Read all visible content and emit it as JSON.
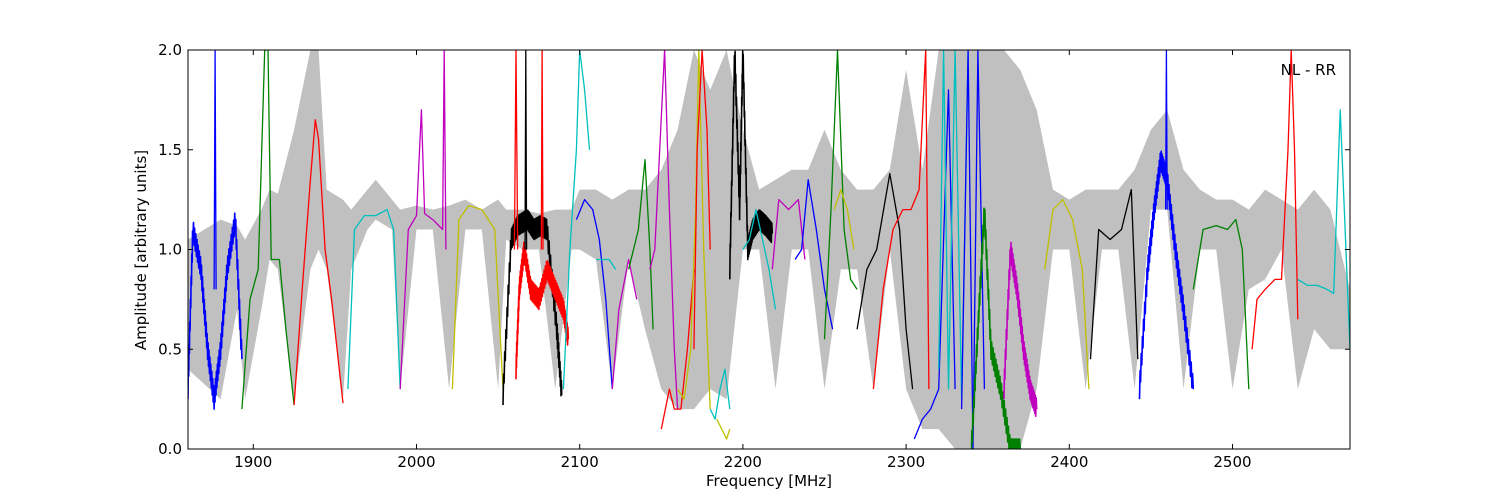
{
  "chart_data": {
    "type": "line",
    "title": "",
    "annotation": "NL - RR",
    "xlabel": "Frequency [MHz]",
    "ylabel": "Amplitude [arbitrary units]",
    "xlim": [
      1860,
      2572
    ],
    "ylim": [
      0.0,
      2.0
    ],
    "x_ticks": [
      1900,
      2000,
      2100,
      2200,
      2300,
      2400,
      2500
    ],
    "x_tick_labels": [
      "1900",
      "2000",
      "2100",
      "2200",
      "2300",
      "2400",
      "2500"
    ],
    "y_ticks": [
      0.0,
      0.5,
      1.0,
      1.5,
      2.0
    ],
    "y_tick_labels": [
      "0.0",
      "0.5",
      "1.0",
      "1.5",
      "2.0"
    ],
    "grid": false,
    "colors": {
      "background_envelope": "#c0c0c0",
      "blue": "#0000ff",
      "green": "#008000",
      "red": "#ff0000",
      "cyan": "#00bfbf",
      "magenta": "#bf00bf",
      "yellow": "#bfbf00",
      "black": "#000000"
    },
    "background_envelope": {
      "x": [
        1860,
        1880,
        1890,
        1895,
        1905,
        1910,
        1915,
        1925,
        1935,
        1940,
        1945,
        1955,
        1960,
        1970,
        1975,
        1985,
        1990,
        2000,
        2010,
        2020,
        2030,
        2040,
        2050,
        2055,
        2065,
        2075,
        2085,
        2095,
        2100,
        2110,
        2120,
        2130,
        2140,
        2150,
        2160,
        2170,
        2180,
        2190,
        2200,
        2210,
        2220,
        2230,
        2240,
        2250,
        2260,
        2270,
        2280,
        2290,
        2300,
        2310,
        2320,
        2330,
        2340,
        2350,
        2360,
        2370,
        2380,
        2390,
        2400,
        2410,
        2420,
        2430,
        2440,
        2450,
        2460,
        2470,
        2480,
        2490,
        2500,
        2510,
        2520,
        2530,
        2540,
        2550,
        2560,
        2572
      ],
      "upper": [
        1.05,
        1.15,
        1.12,
        1.05,
        1.2,
        1.3,
        1.28,
        1.6,
        2.0,
        2.0,
        1.3,
        1.25,
        1.2,
        1.3,
        1.35,
        1.25,
        1.2,
        1.22,
        1.2,
        1.22,
        1.25,
        1.2,
        1.25,
        1.2,
        1.2,
        1.18,
        1.2,
        1.2,
        1.3,
        1.3,
        1.25,
        1.3,
        1.3,
        1.4,
        1.6,
        2.0,
        1.8,
        2.0,
        1.6,
        1.3,
        1.35,
        1.4,
        1.4,
        1.6,
        1.4,
        1.3,
        1.3,
        1.4,
        1.9,
        1.4,
        2.0,
        2.0,
        2.0,
        2.0,
        2.0,
        1.9,
        1.7,
        1.3,
        1.25,
        1.3,
        1.3,
        1.3,
        1.4,
        1.6,
        1.7,
        1.4,
        1.3,
        1.25,
        1.25,
        1.2,
        1.3,
        1.25,
        1.2,
        1.3,
        1.2,
        0.8
      ],
      "lower": [
        0.4,
        0.25,
        0.7,
        0.25,
        0.7,
        0.95,
        0.9,
        0.25,
        0.9,
        1.0,
        0.9,
        0.25,
        0.9,
        1.1,
        1.15,
        1.1,
        0.3,
        1.1,
        1.1,
        0.3,
        1.1,
        1.1,
        0.3,
        1.05,
        1.0,
        1.0,
        0.3,
        1.0,
        1.0,
        0.95,
        0.3,
        0.95,
        0.6,
        0.3,
        0.2,
        0.2,
        0.3,
        0.25,
        1.0,
        1.0,
        0.3,
        1.0,
        1.0,
        0.3,
        0.9,
        0.9,
        0.3,
        1.0,
        0.3,
        0.1,
        0.1,
        0.0,
        0.0,
        0.0,
        0.0,
        0.0,
        0.3,
        1.0,
        1.0,
        0.3,
        1.0,
        1.0,
        0.3,
        1.2,
        1.2,
        0.3,
        1.0,
        1.0,
        0.3,
        0.8,
        0.85,
        1.0,
        0.3,
        0.6,
        0.5,
        0.5
      ]
    },
    "series": [
      {
        "color": "blue",
        "x": [
          1860,
          1863,
          1868,
          1872,
          1876,
          1880,
          1884,
          1889,
          1893
        ],
        "y": [
          0.3,
          1.1,
          0.9,
          0.5,
          0.25,
          0.5,
          0.9,
          1.15,
          0.45
        ],
        "noisy": true
      },
      {
        "color": "blue",
        "x": [
          1876,
          1876.6,
          1877.2
        ],
        "y": [
          0.8,
          2.0,
          0.8
        ]
      },
      {
        "color": "green",
        "x": [
          1893,
          1898,
          1903,
          1907,
          1909,
          1911,
          1916,
          1920,
          1925
        ],
        "y": [
          0.2,
          0.75,
          0.9,
          2.0,
          2.0,
          0.95,
          0.95,
          0.6,
          0.22
        ]
      },
      {
        "color": "red",
        "x": [
          1925,
          1930,
          1935,
          1938,
          1940,
          1944,
          1948,
          1955
        ],
        "y": [
          0.22,
          0.8,
          1.35,
          1.65,
          1.55,
          1.0,
          0.75,
          0.23
        ]
      },
      {
        "color": "cyan",
        "x": [
          1958,
          1962,
          1968,
          1975,
          1982,
          1986,
          1990
        ],
        "y": [
          0.3,
          1.1,
          1.17,
          1.17,
          1.2,
          1.1,
          0.3
        ]
      },
      {
        "color": "magenta",
        "x": [
          1990,
          1995,
          2000,
          2003,
          2005,
          2010,
          2016,
          2017,
          2018
        ],
        "y": [
          0.3,
          1.1,
          1.17,
          1.7,
          1.18,
          1.15,
          1.1,
          2.0,
          1.0
        ]
      },
      {
        "color": "yellow",
        "x": [
          2022,
          2026,
          2032,
          2040,
          2048,
          2053
        ],
        "y": [
          0.3,
          1.15,
          1.22,
          1.2,
          1.1,
          0.3
        ]
      },
      {
        "color": "black",
        "x": [
          2053,
          2058,
          2062,
          2068,
          2072,
          2076,
          2080,
          2086,
          2089
        ],
        "y": [
          0.27,
          1.05,
          1.12,
          1.15,
          1.1,
          1.12,
          1.1,
          0.6,
          0.27
        ],
        "noisy": true
      },
      {
        "color": "red",
        "x": [
          2061,
          2063,
          2066,
          2070,
          2075,
          2080,
          2085,
          2090,
          2093
        ],
        "y": [
          0.4,
          0.8,
          1.0,
          0.8,
          0.75,
          0.9,
          0.8,
          0.7,
          0.55
        ],
        "noisy": true
      },
      {
        "color": "red",
        "x": [
          2060,
          2061,
          2062
        ],
        "y": [
          1.0,
          2.0,
          1.0
        ]
      },
      {
        "color": "black",
        "x": [
          2066.5,
          2067,
          2067.5
        ],
        "y": [
          1.0,
          2.0,
          1.0
        ]
      },
      {
        "color": "red",
        "x": [
          2076.5,
          2077,
          2077.5
        ],
        "y": [
          1.0,
          2.0,
          1.0
        ]
      },
      {
        "color": "cyan",
        "x": [
          2090,
          2094,
          2098,
          2100,
          2103,
          2106
        ],
        "y": [
          0.3,
          1.0,
          1.5,
          2.0,
          1.8,
          1.5
        ]
      },
      {
        "color": "blue",
        "x": [
          2098,
          2103,
          2108,
          2112,
          2116,
          2120
        ],
        "y": [
          1.15,
          1.25,
          1.2,
          1.05,
          0.75,
          0.3
        ]
      },
      {
        "color": "cyan",
        "x": [
          2110,
          2114,
          2118,
          2122
        ],
        "y": [
          0.95,
          0.95,
          0.95,
          0.9
        ]
      },
      {
        "color": "magenta",
        "x": [
          2120,
          2124,
          2130,
          2135
        ],
        "y": [
          0.3,
          0.7,
          0.95,
          0.75
        ]
      },
      {
        "color": "green",
        "x": [
          2130,
          2133,
          2136,
          2140,
          2143,
          2145
        ],
        "y": [
          0.9,
          1.0,
          1.1,
          1.45,
          1.0,
          0.6
        ]
      },
      {
        "color": "magenta",
        "x": [
          2143,
          2146,
          2149,
          2152,
          2155,
          2158,
          2160
        ],
        "y": [
          0.9,
          1.0,
          1.5,
          2.0,
          1.2,
          0.5,
          0.2
        ]
      },
      {
        "color": "red",
        "x": [
          2150,
          2155,
          2158,
          2162,
          2166,
          2170
        ],
        "y": [
          0.1,
          0.3,
          0.2,
          0.2,
          0.5,
          0.9
        ]
      },
      {
        "color": "yellow",
        "x": [
          2160,
          2164,
          2168,
          2171,
          2173,
          2176,
          2180
        ],
        "y": [
          0.3,
          0.25,
          0.5,
          1.2,
          2.0,
          1.0,
          0.2
        ]
      },
      {
        "color": "red",
        "x": [
          2170,
          2172,
          2175,
          2178,
          2180
        ],
        "y": [
          0.5,
          1.5,
          2.0,
          1.6,
          1.0
        ]
      },
      {
        "color": "cyan",
        "x": [
          2180,
          2183,
          2186,
          2189,
          2192
        ],
        "y": [
          0.2,
          0.15,
          0.3,
          0.4,
          0.2
        ]
      },
      {
        "color": "yellow",
        "x": [
          2184,
          2187,
          2190,
          2192
        ],
        "y": [
          0.15,
          0.1,
          0.05,
          0.1
        ]
      },
      {
        "color": "black",
        "x": [
          2192,
          2195,
          2198,
          2200,
          2203,
          2206,
          2210,
          2214,
          2218
        ],
        "y": [
          0.9,
          2.0,
          1.2,
          2.0,
          1.0,
          1.1,
          1.15,
          1.12,
          1.08
        ],
        "noisy": true
      },
      {
        "color": "cyan",
        "x": [
          2200,
          2204,
          2208,
          2212,
          2216,
          2220
        ],
        "y": [
          1.0,
          1.05,
          1.2,
          1.05,
          0.9,
          0.7
        ]
      },
      {
        "color": "magenta",
        "x": [
          2218,
          2222,
          2228,
          2234,
          2238
        ],
        "y": [
          0.9,
          1.25,
          1.2,
          1.25,
          0.95
        ]
      },
      {
        "color": "blue",
        "x": [
          2232,
          2236,
          2240,
          2245,
          2250,
          2255
        ],
        "y": [
          0.95,
          1.0,
          1.35,
          1.1,
          0.8,
          0.6
        ]
      },
      {
        "color": "green",
        "x": [
          2250,
          2254,
          2258,
          2262,
          2266,
          2270
        ],
        "y": [
          0.55,
          1.2,
          2.0,
          1.1,
          0.85,
          0.8
        ]
      },
      {
        "color": "yellow",
        "x": [
          2256,
          2260,
          2264,
          2268
        ],
        "y": [
          1.2,
          1.3,
          1.2,
          1.0
        ]
      },
      {
        "color": "black",
        "x": [
          2270,
          2276,
          2282,
          2290,
          2296,
          2300,
          2304
        ],
        "y": [
          0.6,
          0.9,
          1.0,
          1.38,
          1.1,
          0.6,
          0.3
        ]
      },
      {
        "color": "red",
        "x": [
          2280,
          2286,
          2292,
          2298,
          2303,
          2308,
          2312,
          2314
        ],
        "y": [
          0.3,
          0.8,
          1.1,
          1.2,
          1.2,
          1.3,
          2.0,
          0.3
        ]
      },
      {
        "color": "blue",
        "x": [
          2305,
          2310,
          2315,
          2320,
          2326,
          2330
        ],
        "y": [
          0.05,
          0.15,
          0.2,
          0.3,
          1.8,
          0.3
        ]
      },
      {
        "color": "cyan",
        "x": [
          2320,
          2323,
          2326,
          2330,
          2334,
          2338
        ],
        "y": [
          0.4,
          2.0,
          0.3,
          2.0,
          0.25,
          2.0
        ]
      },
      {
        "color": "blue",
        "x": [
          2334,
          2338,
          2341,
          2344,
          2348
        ],
        "y": [
          0.2,
          2.0,
          0.0,
          2.0,
          0.3
        ]
      },
      {
        "color": "green",
        "x": [
          2340,
          2344,
          2348,
          2352,
          2358,
          2364,
          2370
        ],
        "y": [
          0.0,
          0.6,
          1.2,
          0.5,
          0.3,
          0.0,
          0.0
        ],
        "noisy": true
      },
      {
        "color": "magenta",
        "x": [
          2360,
          2364,
          2368,
          2372,
          2376,
          2380
        ],
        "y": [
          0.3,
          1.0,
          0.8,
          0.5,
          0.3,
          0.2
        ],
        "noisy": true
      },
      {
        "color": "yellow",
        "x": [
          2385,
          2390,
          2396,
          2402,
          2408,
          2412
        ],
        "y": [
          0.9,
          1.2,
          1.25,
          1.15,
          0.9,
          0.3
        ]
      },
      {
        "color": "black",
        "x": [
          2413,
          2418,
          2425,
          2432,
          2438,
          2442
        ],
        "y": [
          0.45,
          1.1,
          1.05,
          1.1,
          1.3,
          0.45
        ]
      },
      {
        "color": "blue",
        "x": [
          2443,
          2448,
          2452,
          2456,
          2460,
          2465,
          2470,
          2476
        ],
        "y": [
          0.3,
          0.9,
          1.2,
          1.45,
          1.35,
          1.0,
          0.7,
          0.3
        ],
        "noisy": true
      },
      {
        "color": "blue",
        "x": [
          2459,
          2459.5,
          2460
        ],
        "y": [
          1.2,
          2.0,
          1.2
        ]
      },
      {
        "color": "green",
        "x": [
          2476,
          2482,
          2490,
          2497,
          2502,
          2506,
          2510
        ],
        "y": [
          0.8,
          1.1,
          1.12,
          1.1,
          1.15,
          1.0,
          0.3
        ]
      },
      {
        "color": "red",
        "x": [
          2512,
          2515,
          2520,
          2526,
          2530,
          2534,
          2536,
          2538,
          2540
        ],
        "y": [
          0.5,
          0.75,
          0.8,
          0.85,
          0.85,
          1.5,
          2.0,
          1.5,
          0.65
        ]
      },
      {
        "color": "cyan",
        "x": [
          2540,
          2546,
          2552,
          2558,
          2562,
          2566,
          2568,
          2572
        ],
        "y": [
          0.85,
          0.82,
          0.82,
          0.8,
          0.78,
          1.7,
          1.3,
          0.5
        ]
      }
    ]
  }
}
